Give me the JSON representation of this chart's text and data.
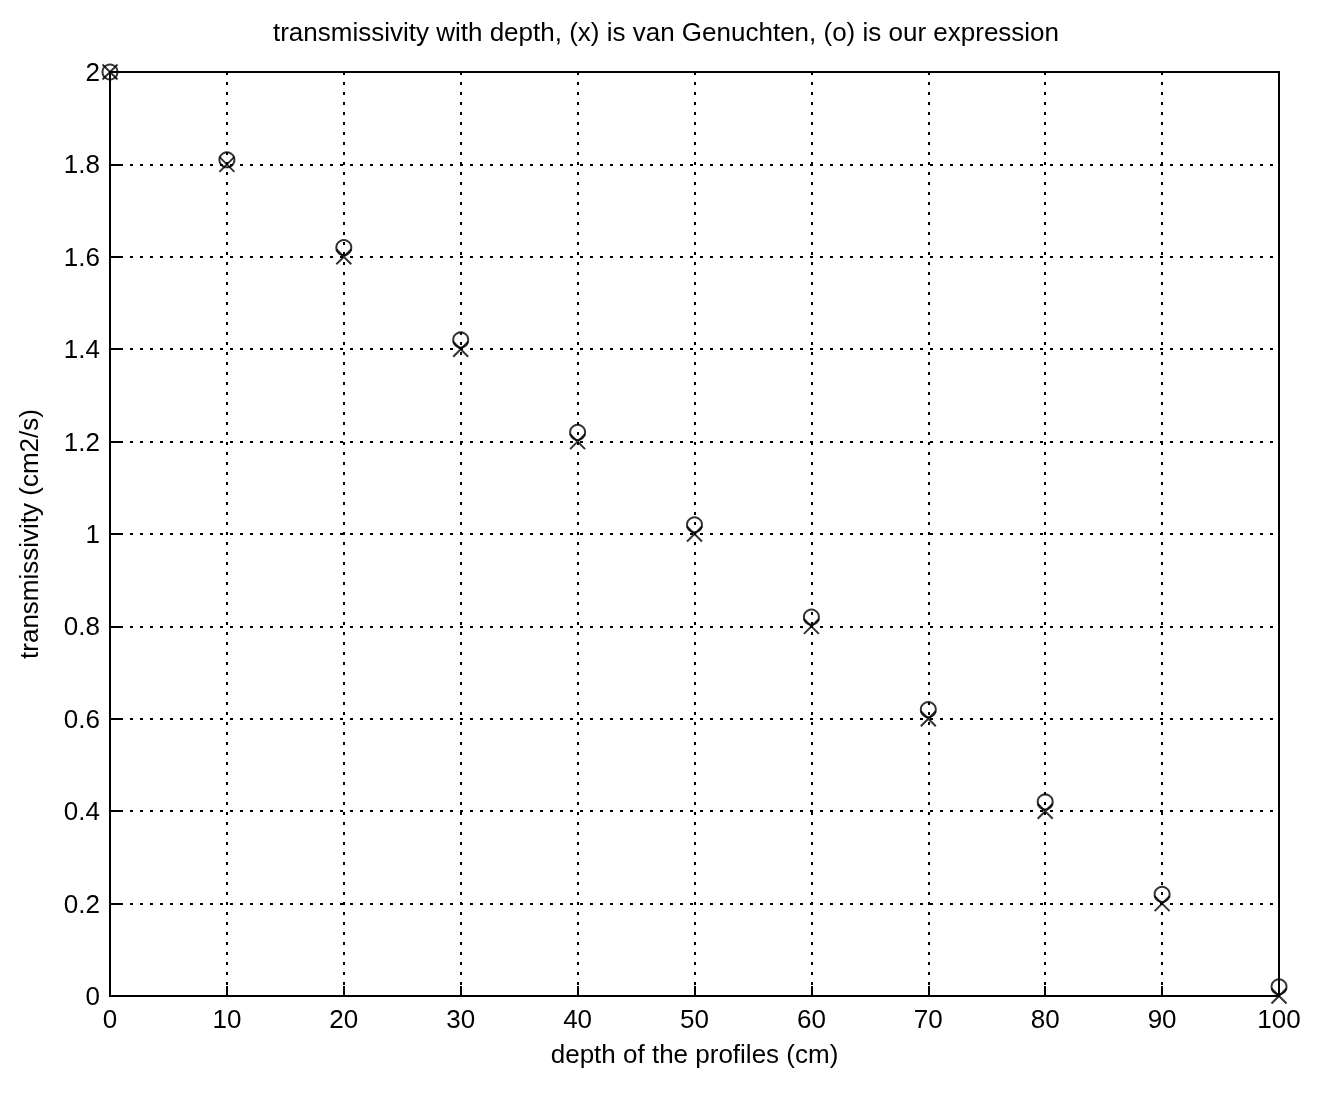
{
  "chart_data": {
    "type": "scatter",
    "title": "transmissivity with depth, (x) is van Genuchten, (o) is our expression",
    "xlabel": "depth of the profiles (cm)",
    "ylabel": "transmissivity (cm2/s)",
    "x": [
      0,
      10,
      20,
      30,
      40,
      50,
      60,
      70,
      80,
      90,
      100
    ],
    "series": [
      {
        "color": "#000000",
        "marker": "circle",
        "values": [
          2,
          1.81,
          1.62,
          1.42,
          1.22,
          1.02,
          0.82,
          0.62,
          0.42,
          0.22,
          0.02
        ]
      },
      {
        "color": "#000000",
        "marker": "cross",
        "values": [
          2,
          1.8,
          1.6,
          1.4,
          1.2,
          1,
          0.8,
          0.6,
          0.4,
          0.2,
          0
        ]
      }
    ],
    "xlim": [
      0,
      100
    ],
    "xticks": [
      0,
      10,
      20,
      30,
      40,
      50,
      60,
      70,
      80,
      90,
      100
    ],
    "ylim": [
      0,
      2
    ],
    "yticks": [
      0,
      0.2,
      0.4,
      0.6,
      0.8,
      1,
      1.2,
      1.4,
      1.6,
      1.8,
      2
    ],
    "grid": true,
    "line_style": "dotted"
  }
}
